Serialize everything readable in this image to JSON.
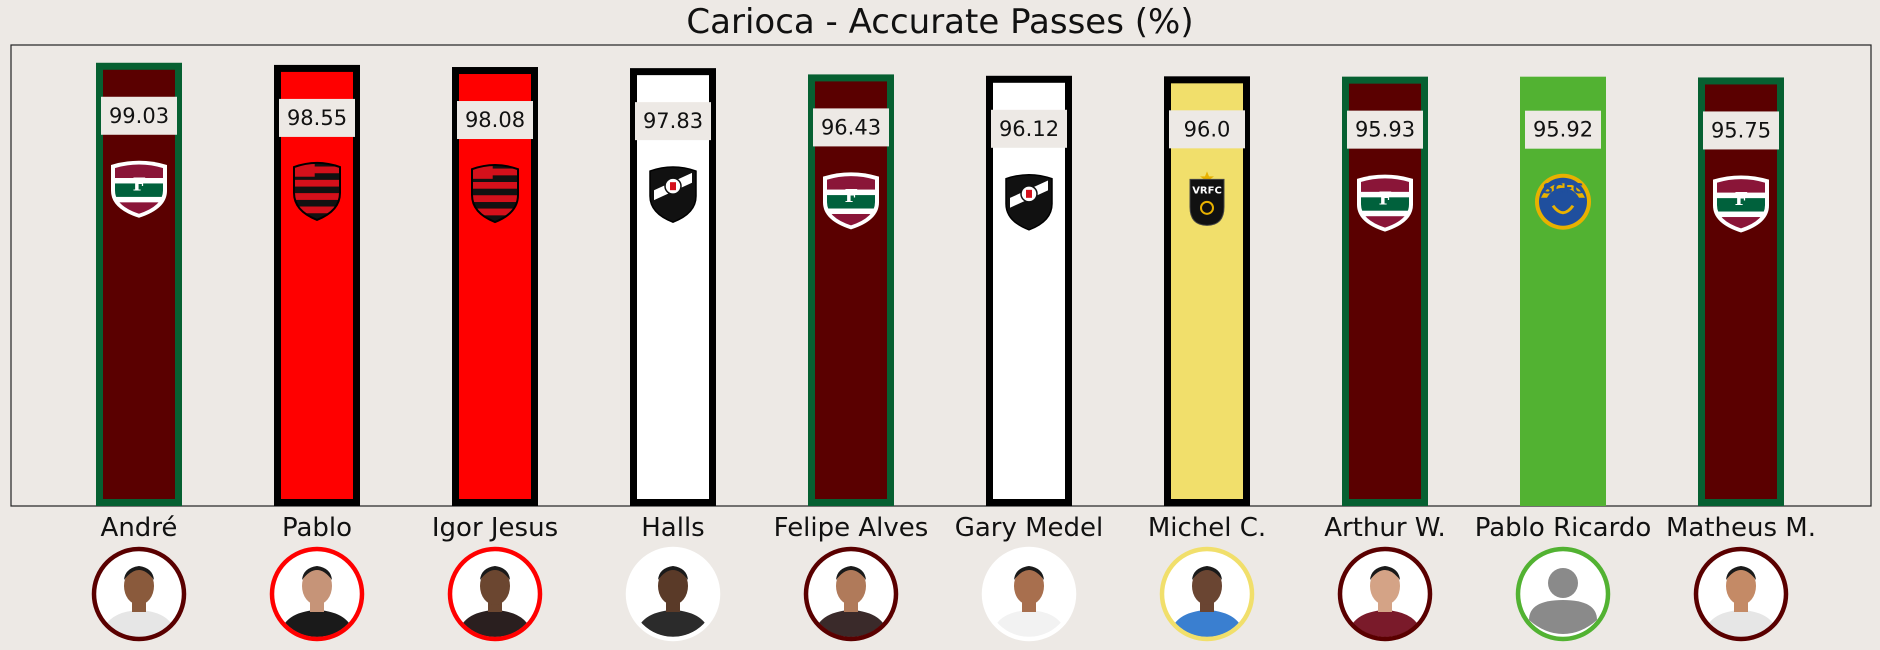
{
  "chart_data": {
    "type": "bar",
    "title": "Carioca - Accurate Passes (%)",
    "xlabel": "",
    "ylabel": "",
    "ylim": [
      0,
      103
    ],
    "grid": false,
    "bars": [
      {
        "player": "André",
        "value": 99.03,
        "label": "99.03",
        "fill": "#5a0000",
        "edge": "#066031",
        "badge": "fluminense-badge-icon",
        "photo": "player-photo-andre"
      },
      {
        "player": "Pablo",
        "value": 98.55,
        "label": "98.55",
        "fill": "#ff0000",
        "edge": "#000000",
        "badge": "flamengo-badge-icon",
        "photo": "player-photo-pablo"
      },
      {
        "player": "Igor Jesus",
        "value": 98.08,
        "label": "98.08",
        "fill": "#ff0000",
        "edge": "#000000",
        "badge": "flamengo-badge-icon",
        "photo": "player-photo-igor-jesus"
      },
      {
        "player": "Halls",
        "value": 97.83,
        "label": "97.83",
        "fill": "#ffffff",
        "edge": "#000000",
        "badge": "vasco-badge-icon",
        "photo": "player-photo-halls"
      },
      {
        "player": "Felipe Alves",
        "value": 96.43,
        "label": "96.43",
        "fill": "#5a0000",
        "edge": "#066031",
        "badge": "fluminense-badge-icon",
        "photo": "player-photo-felipe-alves"
      },
      {
        "player": "Gary Medel",
        "value": 96.12,
        "label": "96.12",
        "fill": "#ffffff",
        "edge": "#000000",
        "badge": "vasco-badge-icon",
        "photo": "player-photo-gary-medel"
      },
      {
        "player": "Michel C.",
        "value": 96.0,
        "label": "96.0",
        "fill": "#f1df6b",
        "edge": "#000000",
        "badge": "volta-redonda-badge-icon",
        "photo": "player-photo-michel-c"
      },
      {
        "player": "Arthur W.",
        "value": 95.93,
        "label": "95.93",
        "fill": "#5a0000",
        "edge": "#066031",
        "badge": "fluminense-badge-icon",
        "photo": "player-photo-arthur-w"
      },
      {
        "player": "Pablo Ricardo",
        "value": 95.92,
        "label": "95.92",
        "fill": "#52b232",
        "edge": "#52b232",
        "badge": "sampaio-correa-badge-icon",
        "photo": "player-photo-placeholder"
      },
      {
        "player": "Matheus M.",
        "value": 95.75,
        "label": "95.75",
        "fill": "#5a0000",
        "edge": "#066031",
        "badge": "fluminense-badge-icon",
        "photo": "player-photo-matheus-m"
      }
    ],
    "badge_texts": {
      "volta-redonda-badge-icon": "VRFC",
      "sampaio-correa-badge-icon": "SCFC"
    }
  }
}
